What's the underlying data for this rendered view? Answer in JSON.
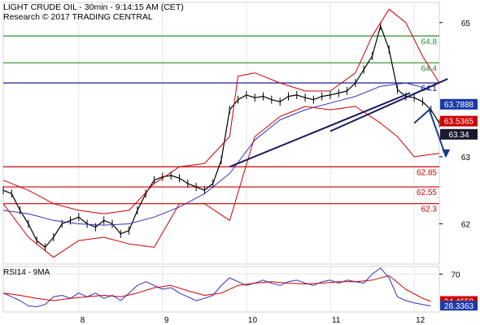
{
  "header": {
    "title": "LIGHT CRUDE OIL - 30min - 9:14:15 AM (CET)",
    "subtitle": "Research © 2017 TRADING CENTRAL"
  },
  "colors": {
    "resistance": "#2e8b2e",
    "pivot": "#00008b",
    "support": "#cc0000",
    "bollinger": "#cc0000",
    "ma": "#3030c0",
    "price": "#000000",
    "tag_blue": "#1a3aa8",
    "tag_red": "#cc0000",
    "tag_dark": "#1a1a2e"
  },
  "chart_data": [
    {
      "type": "candlestick",
      "x_axis": {
        "unit": "day",
        "ticks": [
          "8",
          "9",
          "10",
          "11",
          "12"
        ],
        "range": [
          7.1,
          12.3
        ]
      },
      "y_axis": {
        "range": [
          61.4,
          65.3
        ],
        "ticks": [
          "65",
          "63",
          "62"
        ],
        "tick_values": [
          65,
          63,
          62
        ]
      },
      "levels": [
        {
          "label": "64.8",
          "value": 64.8,
          "kind": "resistance"
        },
        {
          "label": "64.4",
          "value": 64.4,
          "kind": "resistance"
        },
        {
          "label": "64.1",
          "value": 64.1,
          "kind": "pivot"
        },
        {
          "label": "62.85",
          "value": 62.85,
          "kind": "support"
        },
        {
          "label": "62.55",
          "value": 62.55,
          "kind": "support"
        },
        {
          "label": "62.3",
          "value": 62.3,
          "kind": "support"
        }
      ],
      "price_tags": [
        {
          "label": "63.7888",
          "value": 63.7888,
          "kind": "tag_blue"
        },
        {
          "label": "63.5365",
          "value": 63.5365,
          "kind": "tag_red"
        },
        {
          "label": "63.34",
          "value": 63.34,
          "kind": "tag_dark"
        }
      ],
      "trendlines": [
        {
          "x": [
            9.8,
            11.95
          ],
          "y": [
            62.85,
            63.95
          ]
        },
        {
          "x": [
            11.0,
            12.4
          ],
          "y": [
            63.38,
            64.16
          ]
        }
      ],
      "forecast_arrow": {
        "x": [
          12.0,
          12.18,
          12.38
        ],
        "y": [
          63.5,
          63.7,
          63.0
        ]
      },
      "series": [
        {
          "kind": "price",
          "x": [
            7.1,
            7.2,
            7.3,
            7.4,
            7.5,
            7.6,
            7.7,
            7.8,
            7.9,
            8.0,
            8.1,
            8.2,
            8.3,
            8.4,
            8.5,
            8.6,
            8.7,
            8.8,
            8.9,
            9.0,
            9.1,
            9.2,
            9.3,
            9.4,
            9.5,
            9.6,
            9.7,
            9.8,
            9.9,
            10.0,
            10.1,
            10.2,
            10.3,
            10.4,
            10.5,
            10.6,
            10.7,
            10.8,
            10.9,
            11.0,
            11.1,
            11.2,
            11.3,
            11.4,
            11.5,
            11.6,
            11.7,
            11.8,
            11.9,
            12.0,
            12.1,
            12.2,
            12.3
          ],
          "y": [
            62.5,
            62.45,
            62.2,
            62.0,
            61.75,
            61.65,
            61.8,
            62.0,
            62.05,
            62.1,
            62.0,
            61.95,
            62.05,
            62.0,
            61.85,
            61.9,
            62.2,
            62.45,
            62.65,
            62.7,
            62.72,
            62.68,
            62.6,
            62.55,
            62.5,
            62.6,
            62.95,
            63.7,
            63.85,
            63.92,
            63.88,
            63.9,
            63.85,
            63.82,
            63.9,
            63.92,
            63.88,
            63.85,
            63.9,
            63.92,
            63.95,
            63.98,
            64.1,
            64.3,
            64.5,
            64.95,
            64.6,
            64.0,
            63.9,
            63.88,
            63.82,
            63.7,
            63.5
          ]
        },
        {
          "kind": "ma",
          "x": [
            7.1,
            7.4,
            7.7,
            8.0,
            8.3,
            8.6,
            8.9,
            9.2,
            9.5,
            9.8,
            10.1,
            10.4,
            10.7,
            11.0,
            11.3,
            11.6,
            11.9,
            12.2
          ],
          "y": [
            62.2,
            62.15,
            62.05,
            62.0,
            61.98,
            62.0,
            62.1,
            62.25,
            62.45,
            62.75,
            63.25,
            63.55,
            63.7,
            63.8,
            63.9,
            64.05,
            64.1,
            64.0
          ]
        },
        {
          "kind": "bollinger-upper",
          "x": [
            7.1,
            7.4,
            7.7,
            8.0,
            8.3,
            8.6,
            8.9,
            9.2,
            9.5,
            9.8,
            9.9,
            10.1,
            10.4,
            10.7,
            11.0,
            11.3,
            11.5,
            11.7,
            11.9,
            12.1,
            12.3
          ],
          "y": [
            62.65,
            62.5,
            62.3,
            62.2,
            62.15,
            62.2,
            62.6,
            62.85,
            62.9,
            63.3,
            64.2,
            64.25,
            64.1,
            63.98,
            63.98,
            64.25,
            64.8,
            65.2,
            65.0,
            64.5,
            64.1
          ]
        },
        {
          "kind": "bollinger-lower",
          "x": [
            7.1,
            7.4,
            7.7,
            8.0,
            8.3,
            8.6,
            8.9,
            9.2,
            9.5,
            9.8,
            10.1,
            10.4,
            10.7,
            11.0,
            11.3,
            11.6,
            11.8,
            12.0,
            12.3
          ],
          "y": [
            62.3,
            61.8,
            61.5,
            61.75,
            61.8,
            61.7,
            61.65,
            62.3,
            62.3,
            62.05,
            63.3,
            63.6,
            63.75,
            63.7,
            63.75,
            63.5,
            63.3,
            63.0,
            63.05
          ]
        }
      ]
    },
    {
      "type": "line",
      "title": "RSI14 - 9MA",
      "y_axis": {
        "range": [
          20,
          80
        ],
        "ticks": [
          "70"
        ],
        "tick_values": [
          70
        ]
      },
      "x_axis": {
        "range": [
          7.1,
          12.3
        ]
      },
      "price_tags": [
        {
          "label": "34.4658",
          "value": 34.4658,
          "kind": "tag_red"
        },
        {
          "label": "28.3363",
          "value": 28.3363,
          "kind": "tag_blue"
        }
      ],
      "series": [
        {
          "kind": "rsi",
          "x": [
            7.1,
            7.2,
            7.3,
            7.4,
            7.5,
            7.6,
            7.7,
            7.8,
            7.9,
            8.0,
            8.1,
            8.2,
            8.3,
            8.4,
            8.5,
            8.6,
            8.7,
            8.8,
            8.9,
            9.0,
            9.1,
            9.2,
            9.3,
            9.4,
            9.5,
            9.6,
            9.7,
            9.8,
            9.9,
            10.0,
            10.1,
            10.2,
            10.3,
            10.4,
            10.5,
            10.6,
            10.7,
            10.8,
            10.9,
            11.0,
            11.1,
            11.2,
            11.3,
            11.4,
            11.5,
            11.6,
            11.7,
            11.8,
            11.9,
            12.0,
            12.1,
            12.2
          ],
          "y": [
            45,
            40,
            35,
            28,
            27,
            30,
            40,
            42,
            38,
            45,
            40,
            45,
            38,
            42,
            35,
            45,
            55,
            60,
            55,
            50,
            52,
            45,
            40,
            35,
            38,
            42,
            55,
            65,
            60,
            55,
            58,
            62,
            58,
            55,
            60,
            62,
            58,
            55,
            60,
            62,
            58,
            62,
            60,
            58,
            70,
            78,
            65,
            40,
            35,
            32,
            30,
            28
          ]
        },
        {
          "kind": "rsi-ma",
          "x": [
            7.1,
            7.3,
            7.5,
            7.7,
            7.9,
            8.1,
            8.3,
            8.5,
            8.7,
            8.9,
            9.1,
            9.3,
            9.5,
            9.7,
            9.9,
            10.1,
            10.3,
            10.5,
            10.7,
            10.9,
            11.1,
            11.3,
            11.5,
            11.7,
            11.9,
            12.1,
            12.2
          ],
          "y": [
            45,
            42,
            38,
            35,
            38,
            40,
            42,
            40,
            45,
            52,
            55,
            48,
            42,
            45,
            55,
            58,
            60,
            58,
            57,
            58,
            60,
            60,
            62,
            68,
            50,
            38,
            34
          ]
        }
      ]
    }
  ]
}
